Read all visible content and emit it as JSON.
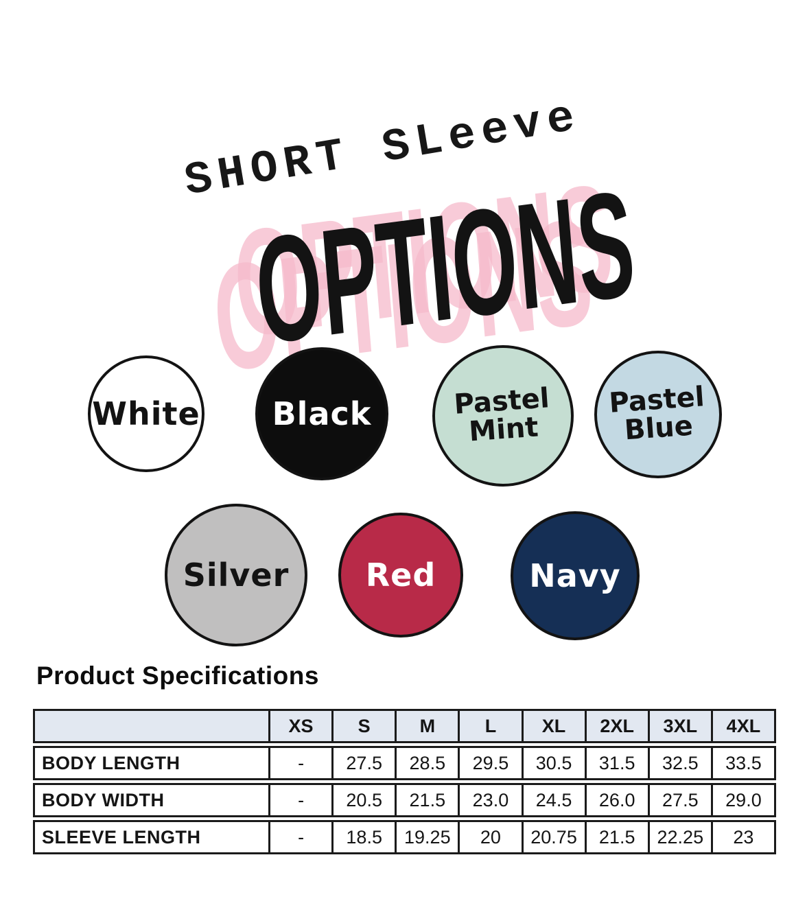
{
  "header": {
    "subtitle": "SHORT SLeeve",
    "title": "OPTIONS",
    "shadow_color": "#f6bacb",
    "title_color": "#131313"
  },
  "color_options": [
    {
      "label": "White",
      "fill": "#ffffff",
      "text_color": "#131313"
    },
    {
      "label": "Black",
      "fill": "#0d0d0d",
      "text_color": "#ffffff"
    },
    {
      "label": "Pastel Mint",
      "fill": "#c5ded2",
      "text_color": "#131313",
      "lines": [
        "Pastel",
        "Mint"
      ]
    },
    {
      "label": "Pastel Blue",
      "fill": "#c3d9e3",
      "text_color": "#131313",
      "lines": [
        "Pastel",
        "Blue"
      ]
    },
    {
      "label": "Silver",
      "fill": "#c0bfbf",
      "text_color": "#131313"
    },
    {
      "label": "Red",
      "fill": "#b82a48",
      "text_color": "#ffffff"
    },
    {
      "label": "Navy",
      "fill": "#152f55",
      "text_color": "#ffffff"
    }
  ],
  "specifications": {
    "heading": "Product Specifications",
    "table": {
      "corner": "",
      "header_bg": "#e2e8f1",
      "size_headers": [
        "XS",
        "S",
        "M",
        "L",
        "XL",
        "2XL",
        "3XL",
        "4XL"
      ],
      "rows": [
        {
          "label": "BODY LENGTH",
          "values": [
            "-",
            "27.5",
            "28.5",
            "29.5",
            "30.5",
            "31.5",
            "32.5",
            "33.5"
          ]
        },
        {
          "label": "BODY WIDTH",
          "values": [
            "-",
            "20.5",
            "21.5",
            "23.0",
            "24.5",
            "26.0",
            "27.5",
            "29.0"
          ]
        },
        {
          "label": "SLEEVE LENGTH",
          "values": [
            "-",
            "18.5",
            "19.25",
            "20",
            "20.75",
            "21.5",
            "22.25",
            "23"
          ]
        }
      ]
    }
  }
}
